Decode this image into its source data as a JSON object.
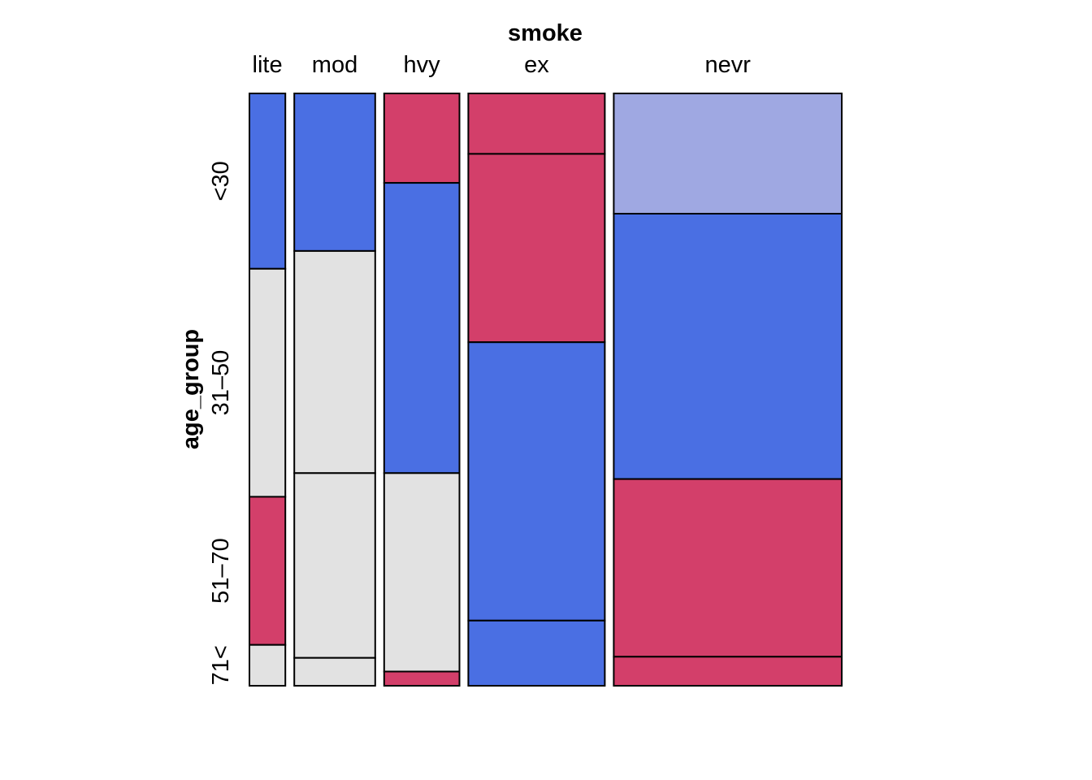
{
  "chart_data": {
    "type": "mosaic",
    "x_variable": "smoke",
    "y_variable": "age_group",
    "x_categories": [
      "lite",
      "mod",
      "hvy",
      "ex",
      "nevr"
    ],
    "x_proportions": [
      0.051,
      0.115,
      0.107,
      0.194,
      0.324
    ],
    "y_categories": [
      "<30",
      "31–50",
      "51–70",
      "71<"
    ],
    "columns": [
      {
        "name": "lite",
        "segments": [
          {
            "age_group": "<30",
            "proportion": 0.296,
            "color": "#4A6FE3"
          },
          {
            "age_group": "31–50",
            "proportion": 0.385,
            "color": "#E2E2E2"
          },
          {
            "age_group": "51–70",
            "proportion": 0.25,
            "color": "#D33F6A"
          },
          {
            "age_group": "71<",
            "proportion": 0.069,
            "color": "#E2E2E2"
          }
        ]
      },
      {
        "name": "mod",
        "segments": [
          {
            "age_group": "<30",
            "proportion": 0.266,
            "color": "#4A6FE3"
          },
          {
            "age_group": "31–50",
            "proportion": 0.375,
            "color": "#E2E2E2"
          },
          {
            "age_group": "51–70",
            "proportion": 0.312,
            "color": "#E2E2E2"
          },
          {
            "age_group": "71<",
            "proportion": 0.047,
            "color": "#E2E2E2"
          }
        ]
      },
      {
        "name": "hvy",
        "segments": [
          {
            "age_group": "<30",
            "proportion": 0.151,
            "color": "#D33F6A"
          },
          {
            "age_group": "31–50",
            "proportion": 0.49,
            "color": "#4A6FE3"
          },
          {
            "age_group": "51–70",
            "proportion": 0.335,
            "color": "#E2E2E2"
          },
          {
            "age_group": "71<",
            "proportion": 0.024,
            "color": "#D33F6A"
          }
        ]
      },
      {
        "name": "ex",
        "segments": [
          {
            "age_group": "<30",
            "proportion": 0.102,
            "color": "#D33F6A"
          },
          {
            "age_group": "31–50",
            "proportion": 0.318,
            "color": "#D33F6A"
          },
          {
            "age_group": "51–70",
            "proportion": 0.47,
            "color": "#4A6FE3"
          },
          {
            "age_group": "71<",
            "proportion": 0.11,
            "color": "#4A6FE3"
          }
        ]
      },
      {
        "name": "nevr",
        "segments": [
          {
            "age_group": "<30",
            "proportion": 0.203,
            "color": "#9FA8E2"
          },
          {
            "age_group": "31–50",
            "proportion": 0.448,
            "color": "#4A6FE3"
          },
          {
            "age_group": "51–70",
            "proportion": 0.3,
            "color": "#D33F6A"
          },
          {
            "age_group": "71<",
            "proportion": 0.049,
            "color": "#D33F6A"
          }
        ]
      }
    ],
    "y_tick_labels_at_column": "lite"
  }
}
